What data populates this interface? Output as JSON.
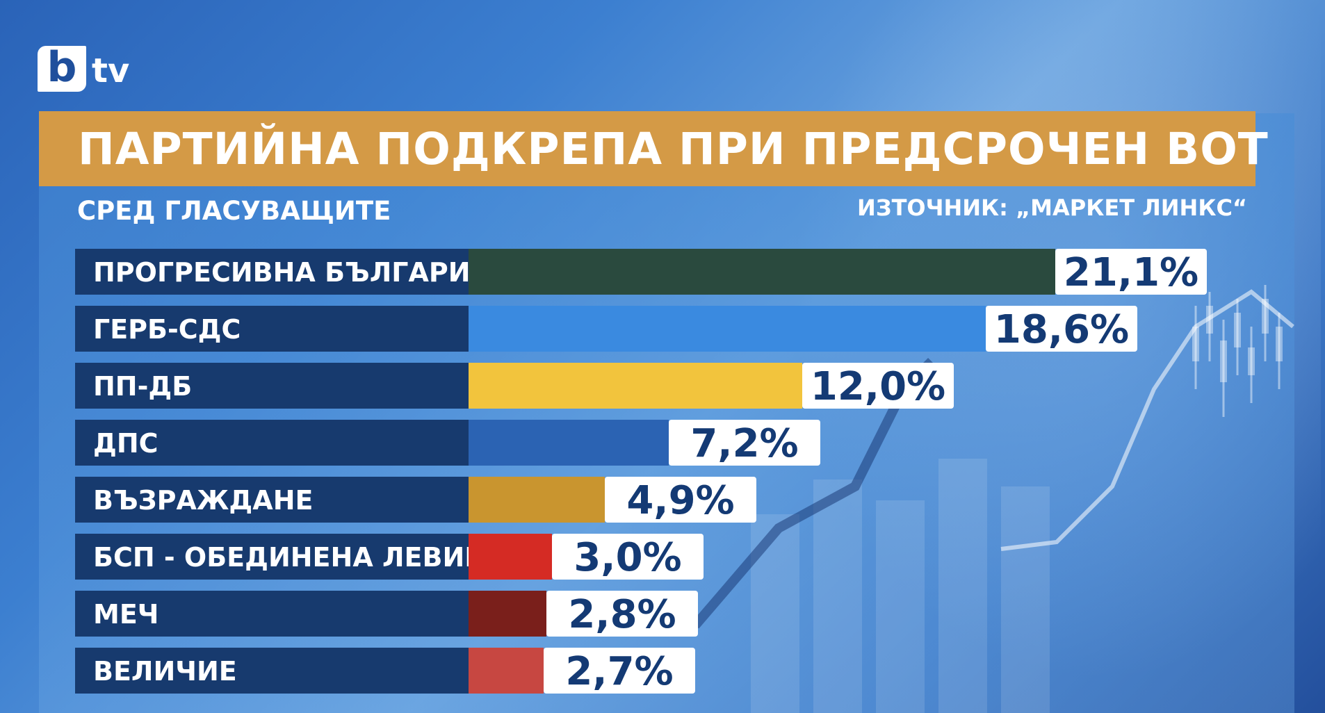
{
  "logo": {
    "b": "b",
    "tv": "tv"
  },
  "header": {
    "title": "ПАРТИЙНА ПОДКРЕПА ПРИ ПРЕДСРОЧЕН ВОТ",
    "subtitle": "СРЕД ГЛАСУВАЩИТЕ",
    "source": "ИЗТОЧНИК: „МАРКЕТ ЛИНКС“"
  },
  "colors": {
    "title_band": "#d49a46",
    "label_band": "#173a6e",
    "value_box": "#ffffff",
    "value_text": "#143a74"
  },
  "chart_data": {
    "type": "bar",
    "orientation": "horizontal",
    "title": "ПАРТИЙНА ПОДКРЕПА ПРИ ПРЕДСРОЧЕН ВОТ",
    "subtitle": "СРЕД ГЛАСУВАЩИТЕ",
    "unit": "%",
    "categories": [
      "ПРОГРЕСИВНА БЪЛГАРИЯ",
      "ГЕРБ-СДС",
      "ПП-ДБ",
      "ДПС",
      "ВЪЗРАЖДАНЕ",
      "БСП - ОБЕДИНЕНА ЛЕВИЦА",
      "МЕЧ",
      "ВЕЛИЧИЕ"
    ],
    "values": [
      21.1,
      18.6,
      12.0,
      7.2,
      4.9,
      3.0,
      2.8,
      2.7
    ],
    "value_labels": [
      "21,1%",
      "18,6%",
      "12,0%",
      "7,2%",
      "4,9%",
      "3,0%",
      "2,8%",
      "2,7%"
    ],
    "colors": [
      "#2a4a3e",
      "#3a8ae0",
      "#f2c43d",
      "#2b63b3",
      "#c9952f",
      "#d52b24",
      "#7a1f1b",
      "#c74741"
    ]
  }
}
